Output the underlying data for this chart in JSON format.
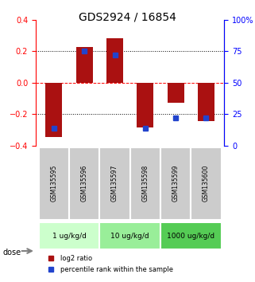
{
  "title": "GDS2924 / 16854",
  "samples": [
    "GSM135595",
    "GSM135596",
    "GSM135597",
    "GSM135598",
    "GSM135599",
    "GSM135600"
  ],
  "log2_ratios": [
    -0.345,
    0.225,
    0.28,
    -0.285,
    -0.13,
    -0.245
  ],
  "percentile_ranks": [
    14,
    75,
    72,
    14,
    22,
    22
  ],
  "ylim_left": [
    -0.4,
    0.4
  ],
  "ylim_right": [
    0,
    100
  ],
  "yticks_left": [
    -0.4,
    -0.2,
    0.0,
    0.2,
    0.4
  ],
  "yticks_right": [
    0,
    25,
    50,
    75,
    100
  ],
  "ytick_labels_right": [
    "0",
    "25",
    "50",
    "75",
    "100%"
  ],
  "hlines": [
    0.2,
    0.0,
    -0.2
  ],
  "hline_styles": [
    "dotted",
    "dashed_red",
    "dotted"
  ],
  "bar_color": "#aa1111",
  "square_color": "#2244cc",
  "dose_groups": [
    {
      "label": "1 ug/kg/d",
      "indices": [
        0,
        1
      ],
      "color": "#ccffcc"
    },
    {
      "label": "10 ug/kg/d",
      "indices": [
        2,
        3
      ],
      "color": "#99ee99"
    },
    {
      "label": "1000 ug/kg/d",
      "indices": [
        4,
        5
      ],
      "color": "#55cc55"
    }
  ],
  "dose_label": "dose",
  "legend_red_label": "log2 ratio",
  "legend_blue_label": "percentile rank within the sample",
  "sample_box_color": "#cccccc",
  "bar_width": 0.55
}
